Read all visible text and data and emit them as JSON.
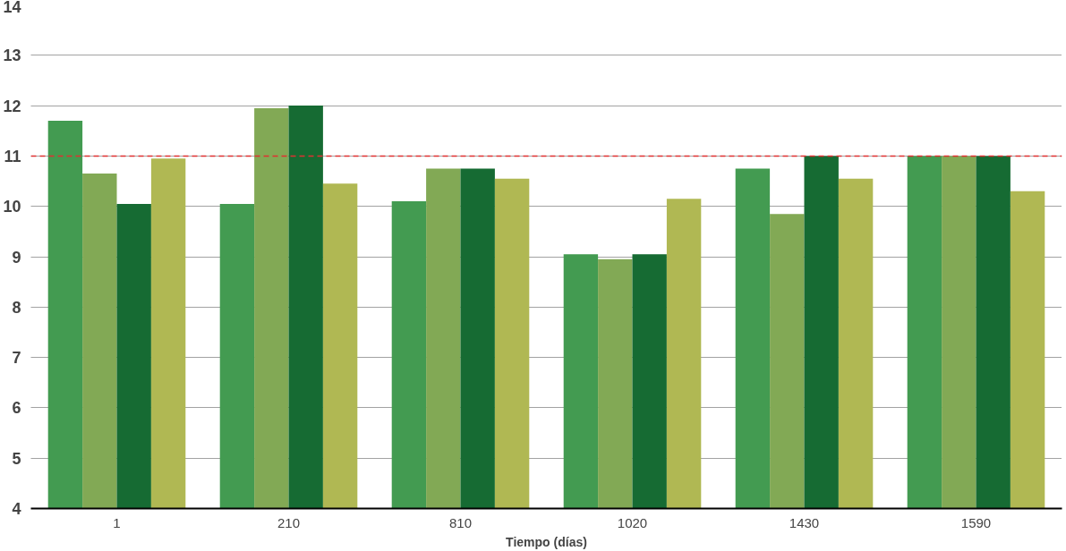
{
  "chart_data": {
    "type": "bar",
    "xlabel": "Tiempo (días)",
    "categories": [
      "1",
      "210",
      "810",
      "1020",
      "1430",
      "1590"
    ],
    "series": [
      {
        "color": "#439b51",
        "values": [
          11.7,
          10.05,
          10.1,
          9.05,
          10.75,
          11.0
        ]
      },
      {
        "color": "#82a955",
        "values": [
          10.65,
          11.95,
          10.75,
          8.95,
          9.85,
          11.0
        ]
      },
      {
        "color": "#166b33",
        "values": [
          10.05,
          12.0,
          10.75,
          9.05,
          11.0,
          11.0
        ]
      },
      {
        "color": "#b0b853",
        "values": [
          10.95,
          10.45,
          10.55,
          10.15,
          10.55,
          10.3
        ]
      }
    ],
    "ylim": [
      4,
      14
    ],
    "yticks": [
      4,
      5,
      6,
      7,
      8,
      9,
      10,
      11,
      12,
      13,
      14
    ],
    "grid": "y",
    "ref_lines": [
      {
        "axis": "y",
        "value": 11,
        "color": "#e03030",
        "line_style": "dashed"
      }
    ]
  }
}
